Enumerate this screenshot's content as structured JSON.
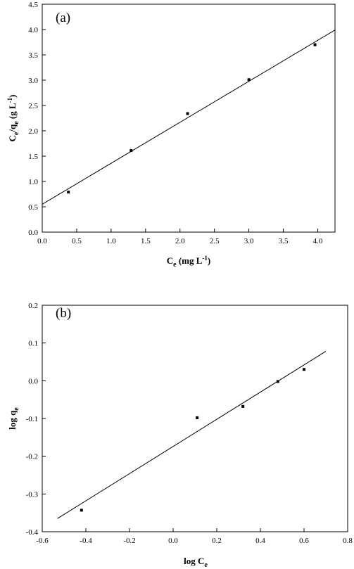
{
  "chart_data": [
    {
      "type": "scatter",
      "panel_label": "(a)",
      "xlabel": {
        "main": "C",
        "sub": "e",
        "rest": " (mg L",
        "sup": "-1",
        "end": ")"
      },
      "ylabel": {
        "p1": "C",
        "s1": "e",
        "p2": "/q",
        "s2": "e",
        "p3": " (g L",
        "sup": "-1",
        "p4": ")"
      },
      "xlim": [
        0,
        4.25
      ],
      "ylim": [
        0,
        4.5
      ],
      "xticks": [
        0.0,
        0.5,
        1.0,
        1.5,
        2.0,
        2.5,
        3.0,
        3.5,
        4.0
      ],
      "yticks": [
        0.0,
        0.5,
        1.0,
        1.5,
        2.0,
        2.5,
        3.0,
        3.5,
        4.0,
        4.5
      ],
      "x": [
        0.38,
        1.29,
        2.11,
        3.0,
        3.96
      ],
      "y": [
        0.79,
        1.61,
        2.34,
        3.01,
        3.7
      ],
      "fit_line": {
        "x": [
          0.0,
          4.25
        ],
        "y": [
          0.55,
          3.99
        ]
      }
    },
    {
      "type": "scatter",
      "panel_label": "(b)",
      "xlabel": {
        "main": "log C",
        "sub": "e"
      },
      "ylabel": {
        "main": "log q",
        "sub": "e"
      },
      "xlim": [
        -0.6,
        0.8
      ],
      "ylim": [
        -0.4,
        0.2
      ],
      "xticks": [
        -0.6,
        -0.4,
        -0.2,
        0.0,
        0.2,
        0.4,
        0.6,
        0.8
      ],
      "yticks": [
        -0.4,
        -0.3,
        -0.2,
        -0.1,
        0.0,
        0.1,
        0.2
      ],
      "x": [
        -0.42,
        0.11,
        0.32,
        0.48,
        0.6
      ],
      "y": [
        -0.343,
        -0.098,
        -0.068,
        -0.002,
        0.03
      ],
      "fit_line": {
        "x": [
          -0.53,
          0.7
        ],
        "y": [
          -0.365,
          0.078
        ]
      }
    }
  ]
}
